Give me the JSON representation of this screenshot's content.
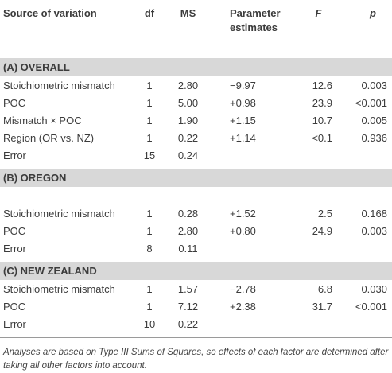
{
  "table": {
    "header": [
      "Source of variation",
      "df",
      "MS",
      "Parameter estimates",
      "F",
      "p"
    ],
    "sections": [
      {
        "title": "(A) OVERALL",
        "rows": [
          [
            "Stoichiometric mismatch",
            "1",
            "2.80",
            "−9.97",
            "12.6",
            "0.003"
          ],
          [
            "POC",
            "1",
            "5.00",
            "+0.98",
            "23.9",
            "<0.001"
          ],
          [
            "Mismatch × POC",
            "1",
            "1.90",
            "+1.15",
            "10.7",
            "0.005"
          ],
          [
            "Region (OR vs. NZ)",
            "1",
            "0.22",
            "+1.14",
            "<0.1",
            "0.936"
          ],
          [
            "Error",
            "15",
            "0.24",
            "",
            "",
            ""
          ]
        ]
      },
      {
        "title": "(B) OREGON",
        "rows": [
          [
            "Stoichiometric mismatch",
            "1",
            "0.28",
            "+1.52",
            "2.5",
            "0.168"
          ],
          [
            "POC",
            "1",
            "2.80",
            "+0.80",
            "24.9",
            "0.003"
          ],
          [
            "Error",
            "8",
            "0.11",
            "",
            "",
            ""
          ]
        ]
      },
      {
        "title": "(C) NEW ZEALAND",
        "rows": [
          [
            "Stoichiometric mismatch",
            "1",
            "1.57",
            "−2.78",
            "6.8",
            "0.030"
          ],
          [
            "POC",
            "1",
            "7.12",
            "+2.38",
            "31.7",
            "<0.001"
          ],
          [
            "Error",
            "10",
            "0.22",
            "",
            "",
            ""
          ]
        ]
      }
    ]
  },
  "footnote": "Analyses are based on Type III Sums of Squares, so effects of each factor are determined after taking all other factors into account."
}
